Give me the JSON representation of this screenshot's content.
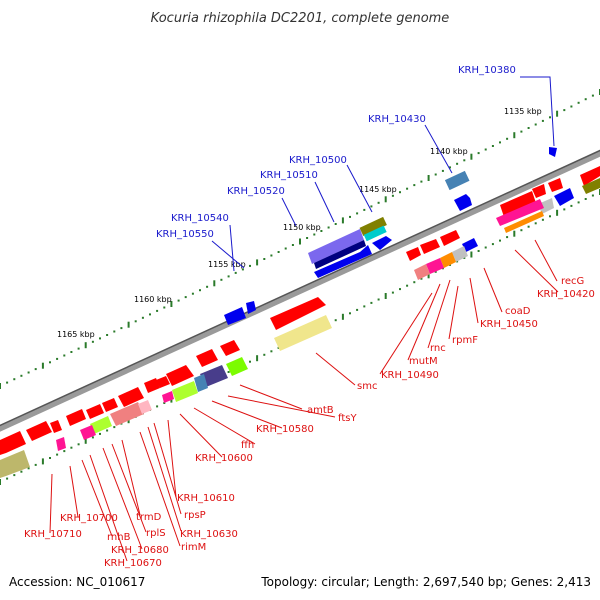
{
  "title": "Kocuria rhizophila DC2201, complete genome",
  "footer": {
    "accession": "Accession: NC_010617",
    "topology": "Topology: circular; Length: 2,697,540 bp; Genes: 2,413"
  },
  "colors": {
    "forward_label": "#1a1acc",
    "reverse_label": "#dd1111",
    "backbone": "#888888",
    "tick": "#2a7a2a"
  },
  "kbp_ticks": [
    "1135 kbp",
    "1140 kbp",
    "1145 kbp",
    "1150 kbp",
    "1155 kbp",
    "1160 kbp",
    "1165 kbp"
  ],
  "forward_genes": [
    "KRH_10380",
    "KRH_10430",
    "KRH_10500",
    "KRH_10510",
    "KRH_10520",
    "KRH_10540",
    "KRH_10550"
  ],
  "reverse_genes": [
    "recG",
    "KRH_10420",
    "coaD",
    "KRH_10450",
    "rpmF",
    "rnc",
    "mutM",
    "KRH_10490",
    "smc",
    "amtB",
    "ftsY",
    "KRH_10580",
    "ffh",
    "KRH_10600",
    "KRH_10610",
    "rpsP",
    "KRH_10630",
    "rimM",
    "trmD",
    "rplS",
    "KRH_10680",
    "KRH_10670",
    "rnhB",
    "KRH_10700",
    "KRH_10710"
  ]
}
